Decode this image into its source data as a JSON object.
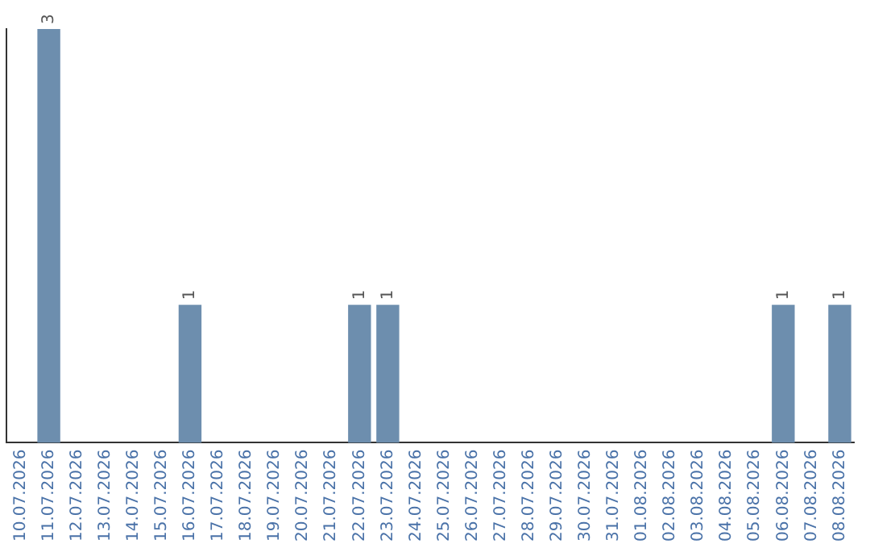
{
  "chart_data": {
    "type": "bar",
    "categories": [
      "10.07.2026",
      "11.07.2026",
      "12.07.2026",
      "13.07.2026",
      "14.07.2026",
      "15.07.2026",
      "16.07.2026",
      "17.07.2026",
      "18.07.2026",
      "19.07.2026",
      "20.07.2026",
      "21.07.2026",
      "22.07.2026",
      "23.07.2026",
      "24.07.2026",
      "25.07.2026",
      "26.07.2026",
      "27.07.2026",
      "28.07.2026",
      "29.07.2026",
      "30.07.2026",
      "31.07.2026",
      "01.08.2026",
      "02.08.2026",
      "03.08.2026",
      "04.08.2026",
      "05.08.2026",
      "06.08.2026",
      "07.08.2026",
      "08.08.2026"
    ],
    "values": [
      null,
      3,
      null,
      null,
      null,
      null,
      1,
      null,
      null,
      null,
      null,
      null,
      1,
      1,
      null,
      null,
      null,
      null,
      null,
      null,
      null,
      null,
      null,
      null,
      null,
      null,
      null,
      1,
      null,
      1
    ],
    "color": "#6d8eae",
    "data_labels": true,
    "grid": false,
    "legend": false,
    "tick_labels": "x"
  }
}
